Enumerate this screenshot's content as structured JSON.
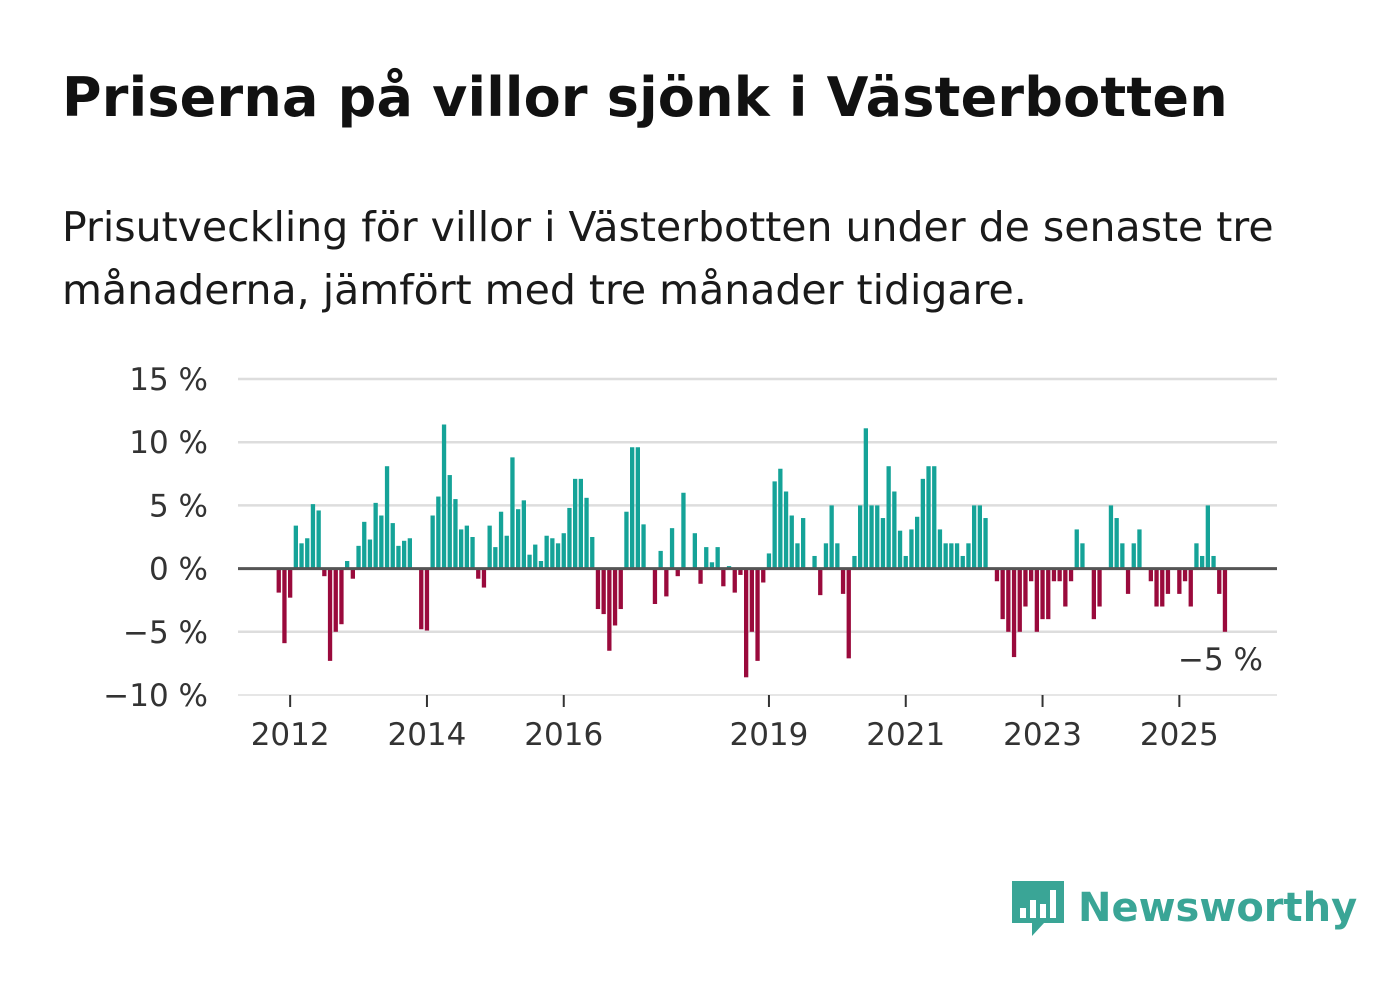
{
  "title": "Priserna på villor sjönk i Västerbotten",
  "subtitle": "Prisutveckling för villor i Västerbotten under de senaste tre månaderna, jämfört med tre månader tidigare.",
  "brand": {
    "name": "Newsworthy",
    "color": "#3aa596"
  },
  "colors": {
    "positive": "#15a398",
    "negative": "#9a0a3c",
    "zero_line": "#555555",
    "grid": "#dddddd"
  },
  "chart_data": {
    "type": "bar",
    "title": "Priserna på villor sjönk i Västerbotten",
    "xlabel": "",
    "ylabel": "",
    "ylim": [
      -10,
      15
    ],
    "yticks": [
      15,
      10,
      5,
      0,
      -5,
      -10
    ],
    "ytick_labels": [
      "15 %",
      "10 %",
      "5 %",
      "0 %",
      "−5 %",
      "−10 %"
    ],
    "xticks": [
      {
        "label": "2012",
        "index": 2
      },
      {
        "label": "2014",
        "index": 26
      },
      {
        "label": "2016",
        "index": 50
      },
      {
        "label": "2019",
        "index": 86
      },
      {
        "label": "2021",
        "index": 110
      },
      {
        "label": "2023",
        "index": 134
      },
      {
        "label": "2025",
        "index": 158
      }
    ],
    "last_label": "−5 %",
    "unit": "%",
    "values": [
      -1.9,
      -5.9,
      -2.3,
      3.4,
      2,
      2.4,
      5.1,
      4.6,
      -0.6,
      -7.3,
      -5,
      -4.4,
      0.6,
      -0.8,
      1.8,
      3.7,
      2.3,
      5.2,
      4.2,
      8.1,
      3.6,
      1.8,
      2.2,
      2.4,
      0,
      -4.8,
      -4.9,
      4.2,
      5.7,
      11.4,
      7.4,
      5.5,
      3.1,
      3.4,
      2.5,
      -0.8,
      -1.5,
      3.4,
      1.7,
      4.5,
      2.6,
      8.8,
      4.7,
      5.4,
      1.1,
      1.9,
      0.6,
      2.6,
      2.4,
      2,
      2.8,
      4.8,
      7.1,
      7.1,
      5.6,
      2.5,
      -3.2,
      -3.6,
      -6.5,
      -4.5,
      -3.2,
      4.5,
      9.6,
      9.6,
      3.5,
      0,
      -2.8,
      1.4,
      -2.2,
      3.2,
      -0.6,
      6,
      0,
      2.8,
      -1.2,
      1.7,
      0.5,
      1.7,
      -1.4,
      0.2,
      -1.9,
      -0.5,
      -8.6,
      -5,
      -7.3,
      -1.1,
      1.2,
      6.9,
      7.9,
      6.1,
      4.2,
      2,
      4,
      0,
      1,
      -2.1,
      2,
      5,
      2,
      -2,
      -7.1,
      1,
      5,
      11.1,
      5,
      5,
      4,
      8.1,
      6.1,
      3,
      1,
      3.1,
      4.1,
      7.1,
      8.1,
      8.1,
      3.1,
      2,
      2,
      2,
      1,
      2,
      5,
      5,
      4,
      0,
      -1,
      -4,
      -5,
      -7,
      -5,
      -3,
      -1,
      -5,
      -4,
      -4,
      -1,
      -1,
      -3,
      -1,
      3.1,
      2,
      0,
      -4,
      -3,
      0,
      5,
      4,
      2,
      -2,
      2,
      3.1,
      0,
      -1,
      -3,
      -3,
      -2,
      0,
      -2,
      -1,
      -3,
      2,
      1,
      5,
      1,
      -2,
      -5
    ]
  }
}
